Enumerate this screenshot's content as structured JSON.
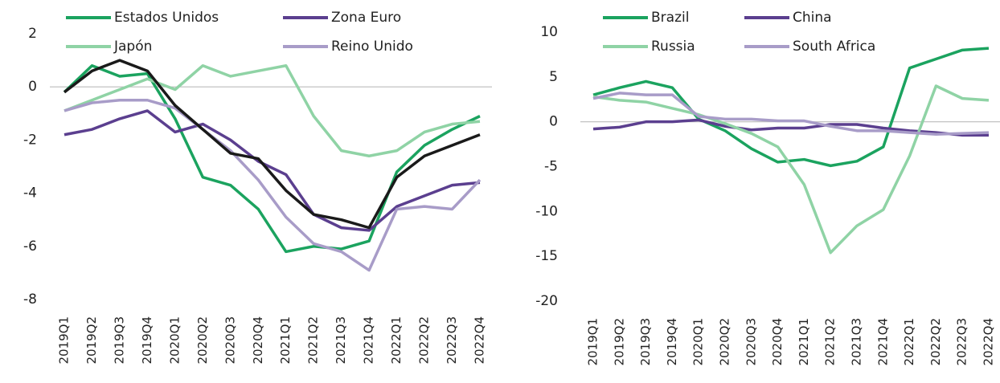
{
  "chart_data": [
    {
      "type": "line",
      "categories": [
        "2019Q1",
        "2019Q2",
        "2019Q3",
        "2019Q4",
        "2020Q1",
        "2020Q2",
        "2020Q3",
        "2020Q4",
        "2021Q1",
        "2021Q2",
        "2021Q3",
        "2021Q4",
        "2022Q1",
        "2022Q2",
        "2022Q3",
        "2022Q4"
      ],
      "ylim": [
        -8,
        2
      ],
      "yticks": [
        -8,
        -6,
        -4,
        -2,
        0,
        2
      ],
      "series": [
        {
          "name": "Estados Unidos",
          "color": "#1ba35f",
          "values": [
            -0.2,
            0.8,
            0.4,
            0.5,
            -1.2,
            -3.4,
            -3.7,
            -4.6,
            -6.2,
            -6.0,
            -6.1,
            -5.8,
            -3.2,
            -2.2,
            -1.6,
            -1.1
          ]
        },
        {
          "name": "Zona Euro",
          "color": "#5b3f8f",
          "values": [
            -1.8,
            -1.6,
            -1.2,
            -0.9,
            -1.7,
            -1.4,
            -2.0,
            -2.8,
            -3.3,
            -4.8,
            -5.3,
            -5.4,
            -4.5,
            -4.1,
            -3.7,
            -3.6
          ]
        },
        {
          "name": "Japón",
          "color": "#8fd3a5",
          "values": [
            -0.9,
            -0.5,
            -0.1,
            0.3,
            -0.1,
            0.8,
            0.4,
            0.6,
            0.8,
            -1.1,
            -2.4,
            -2.6,
            -2.4,
            -1.7,
            -1.4,
            -1.3
          ]
        },
        {
          "name": "Reino Unido",
          "color": "#a89cc8",
          "values": [
            -0.9,
            -0.6,
            -0.5,
            -0.5,
            -0.8,
            -1.6,
            -2.4,
            -3.5,
            -4.9,
            -5.9,
            -6.2,
            -6.9,
            -4.6,
            -4.5,
            -4.6,
            -3.5
          ]
        },
        {
          "color": "#1a1a1a",
          "values": [
            -0.2,
            0.6,
            1.0,
            0.6,
            -0.7,
            -1.6,
            -2.5,
            -2.7,
            -3.9,
            -4.8,
            -5.0,
            -5.3,
            -3.4,
            -2.6,
            -2.2,
            -1.8
          ]
        }
      ]
    },
    {
      "type": "line",
      "categories": [
        "2019Q1",
        "2019Q2",
        "2019Q3",
        "2019Q4",
        "2020Q1",
        "2020Q2",
        "2020Q3",
        "2020Q4",
        "2021Q1",
        "2021Q2",
        "2021Q3",
        "2021Q4",
        "2022Q1",
        "2022Q2",
        "2022Q3",
        "2022Q4"
      ],
      "ylim": [
        -20,
        10
      ],
      "yticks": [
        -20,
        -15,
        -10,
        -5,
        0,
        5,
        10
      ],
      "series": [
        {
          "name": "Brazil",
          "color": "#1ba35f",
          "values": [
            3.0,
            3.8,
            4.5,
            3.8,
            0.3,
            -1.0,
            -3.0,
            -4.5,
            -4.2,
            -4.9,
            -4.4,
            -2.8,
            6.0,
            7.0,
            8.0,
            8.2
          ]
        },
        {
          "name": "China",
          "color": "#5b3f8f",
          "values": [
            -0.8,
            -0.6,
            0,
            0,
            0.2,
            -0.5,
            -0.9,
            -0.7,
            -0.7,
            -0.3,
            -0.3,
            -0.7,
            -1.0,
            -1.2,
            -1.5,
            -1.5
          ]
        },
        {
          "name": "Russia",
          "color": "#8fd3a5",
          "values": [
            2.8,
            2.4,
            2.2,
            1.5,
            0.8,
            -0.2,
            -1.3,
            -2.8,
            -7.0,
            -14.6,
            -11.6,
            -9.8,
            -3.8,
            4.0,
            2.6,
            2.4
          ]
        },
        {
          "name": "South Africa",
          "color": "#a89cc8",
          "values": [
            2.6,
            3.2,
            3.0,
            3.0,
            0.6,
            0.3,
            0.3,
            0.1,
            0.1,
            -0.5,
            -1.0,
            -1.0,
            -1.2,
            -1.4,
            -1.3,
            -1.2
          ]
        }
      ]
    }
  ]
}
